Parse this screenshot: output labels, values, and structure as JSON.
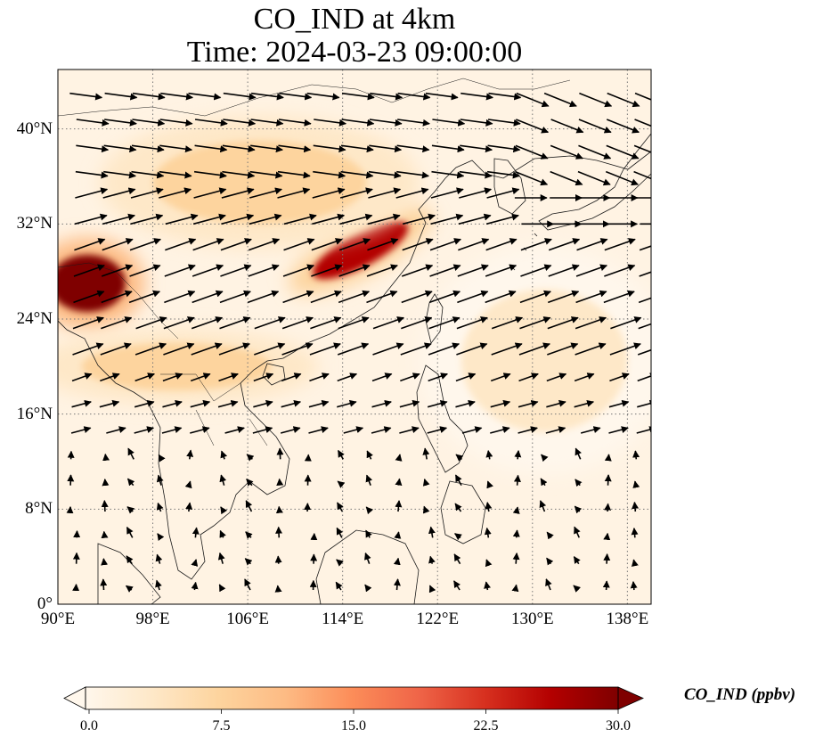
{
  "title": {
    "line1": "CO_IND at 4km",
    "line2": "Time: 2024-03-23 09:00:00"
  },
  "map": {
    "extent": {
      "lon_min": 90,
      "lon_max": 140,
      "lat_min": 0,
      "lat_max": 45
    },
    "lat_ticks": [
      {
        "value": 0,
        "label": "0°"
      },
      {
        "value": 8,
        "label": "8°N"
      },
      {
        "value": 16,
        "label": "16°N"
      },
      {
        "value": 24,
        "label": "24°N"
      },
      {
        "value": 32,
        "label": "32°N"
      },
      {
        "value": 40,
        "label": "40°N"
      }
    ],
    "lon_ticks": [
      {
        "value": 90,
        "label": "90°E"
      },
      {
        "value": 98,
        "label": "98°E"
      },
      {
        "value": 106,
        "label": "106°E"
      },
      {
        "value": 114,
        "label": "114°E"
      },
      {
        "value": 122,
        "label": "122°E"
      },
      {
        "value": 130,
        "label": "130°E"
      },
      {
        "value": 138,
        "label": "138°E"
      }
    ],
    "gridlines": "dotted",
    "field_variable": "CO_IND",
    "vectors": "wind arrows",
    "plumes": [
      {
        "lon": 92.5,
        "lat": 27.0,
        "rx": 3.2,
        "ry": 2.4,
        "value": 30
      },
      {
        "lon": 115.5,
        "lat": 29.8,
        "rx": 4.5,
        "ry": 1.4,
        "value": 26
      },
      {
        "lon": 107.0,
        "lat": 35.5,
        "rx": 9.0,
        "ry": 3.5,
        "value": 8
      },
      {
        "lon": 100.0,
        "lat": 20.0,
        "rx": 8.0,
        "ry": 2.0,
        "value": 6
      },
      {
        "lon": 131.0,
        "lat": 20.5,
        "rx": 7.0,
        "ry": 6.0,
        "value": 4
      }
    ]
  },
  "colorbar": {
    "label": "CO_IND (ppbv)",
    "min": 0.0,
    "max": 30.0,
    "extend": "both",
    "cmap": "OrRd",
    "ticks": [
      "0.0",
      "7.5",
      "15.0",
      "22.5",
      "30.0"
    ],
    "colors": [
      "#fff7ec",
      "#fee8c8",
      "#fdd49e",
      "#fdbb84",
      "#fc8d59",
      "#ef6548",
      "#d7301f",
      "#b30000",
      "#7f0000"
    ]
  }
}
